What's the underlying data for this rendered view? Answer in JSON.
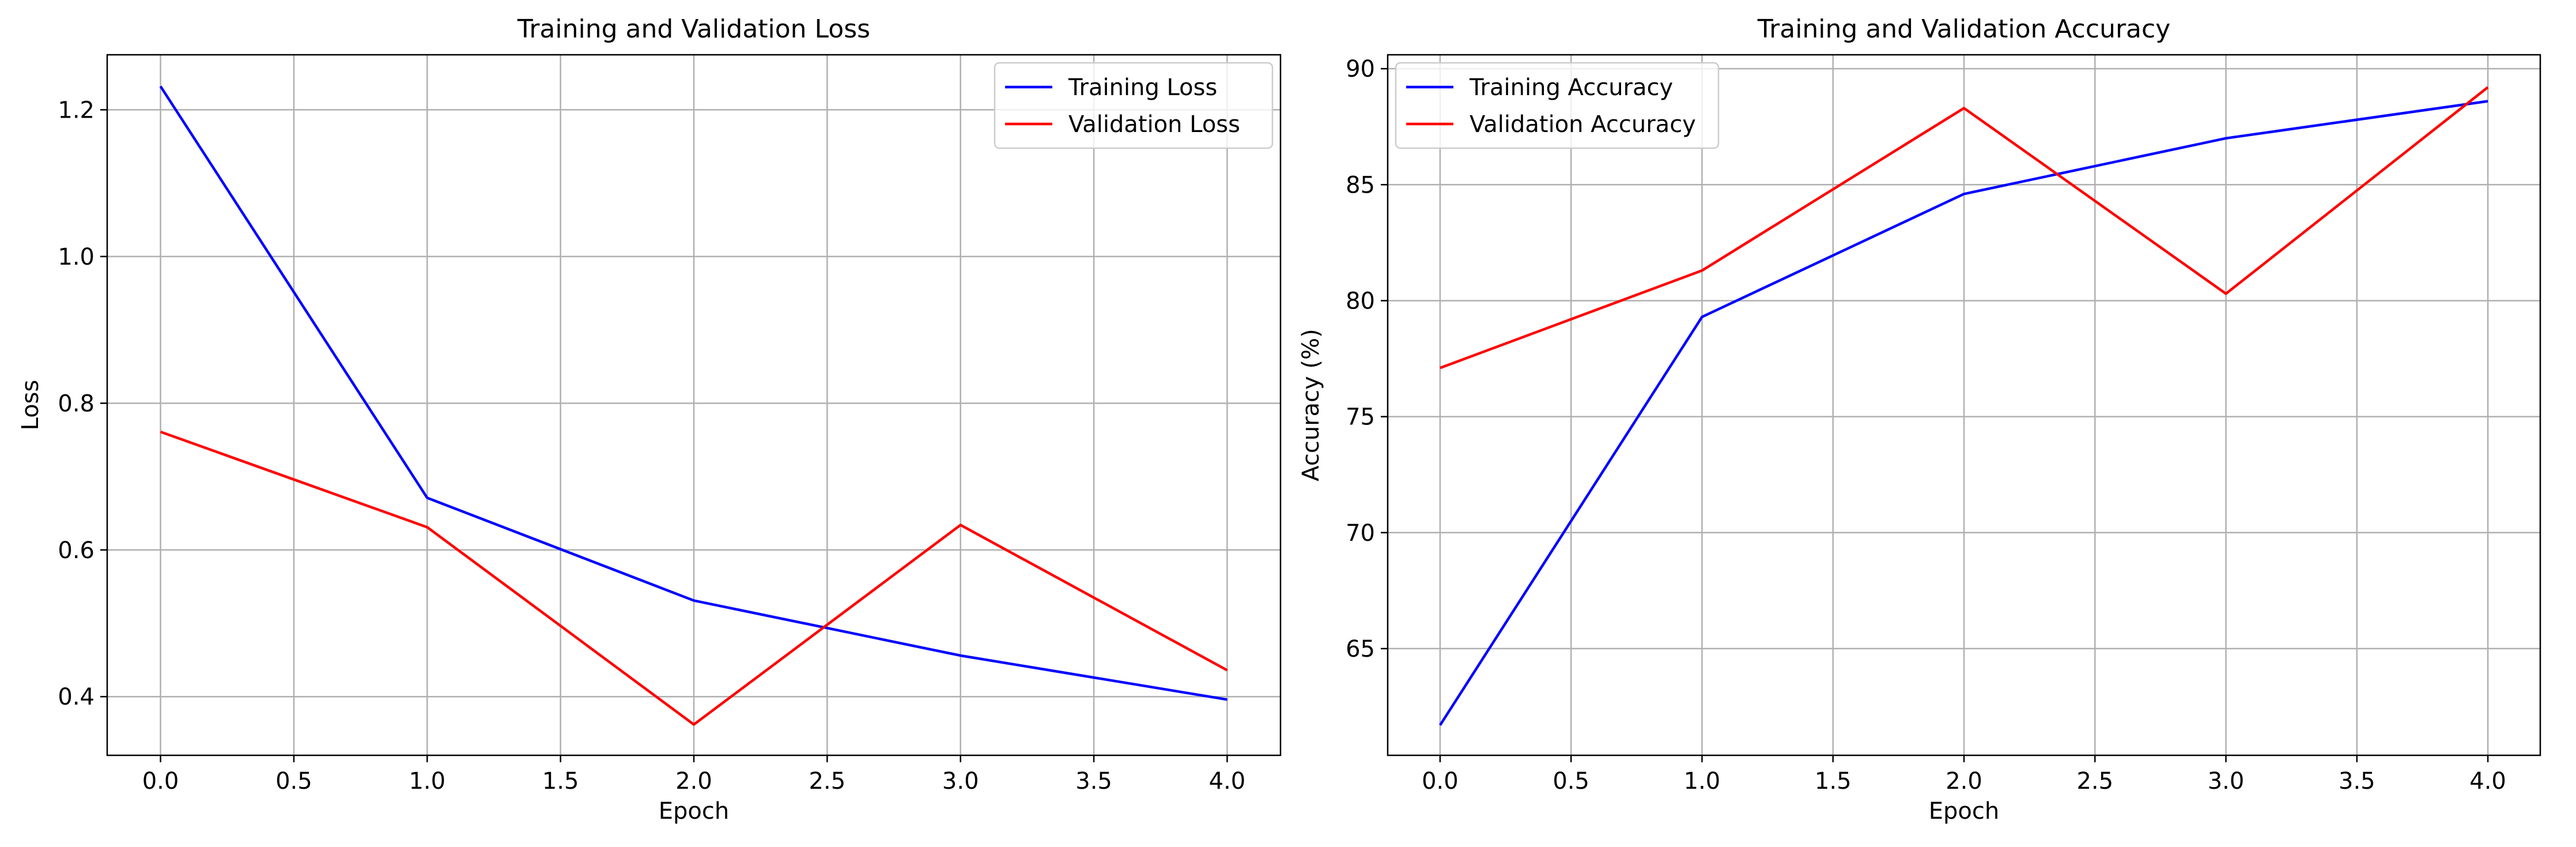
{
  "chart_data": [
    {
      "type": "line",
      "title": "Training and Validation Loss",
      "xlabel": "Epoch",
      "ylabel": "Loss",
      "x": [
        0,
        1,
        2,
        3,
        4
      ],
      "xlim": [
        -0.2,
        4.2
      ],
      "ylim": [
        0.32,
        1.275
      ],
      "xticks": [
        0,
        0.5,
        1,
        1.5,
        2,
        2.5,
        3,
        3.5,
        4
      ],
      "xtick_labels": [
        "0.0",
        "0.5",
        "1.0",
        "1.5",
        "2.0",
        "2.5",
        "3.0",
        "3.5",
        "4.0"
      ],
      "yticks": [
        0.4,
        0.6,
        0.8,
        1.0,
        1.2
      ],
      "ytick_labels": [
        "0.4",
        "0.6",
        "0.8",
        "1.0",
        "1.2"
      ],
      "grid": true,
      "legend_position": "upper right",
      "series": [
        {
          "name": "Training Loss",
          "color": "#0000ff",
          "values": [
            1.232,
            0.671,
            0.531,
            0.456,
            0.396
          ]
        },
        {
          "name": "Validation Loss",
          "color": "#ff0000",
          "values": [
            0.761,
            0.631,
            0.362,
            0.634,
            0.436
          ]
        }
      ]
    },
    {
      "type": "line",
      "title": "Training and Validation Accuracy",
      "xlabel": "Epoch",
      "ylabel": "Accuracy (%)",
      "x": [
        0,
        1,
        2,
        3,
        4
      ],
      "xlim": [
        -0.2,
        4.2
      ],
      "ylim": [
        60.4,
        90.6
      ],
      "xticks": [
        0,
        0.5,
        1,
        1.5,
        2,
        2.5,
        3,
        3.5,
        4
      ],
      "xtick_labels": [
        "0.0",
        "0.5",
        "1.0",
        "1.5",
        "2.0",
        "2.5",
        "3.0",
        "3.5",
        "4.0"
      ],
      "yticks": [
        65,
        70,
        75,
        80,
        85,
        90
      ],
      "ytick_labels": [
        "65",
        "70",
        "75",
        "80",
        "85",
        "90"
      ],
      "grid": true,
      "legend_position": "upper left",
      "series": [
        {
          "name": "Training Accuracy",
          "color": "#0000ff",
          "values": [
            61.7,
            79.3,
            84.6,
            87.0,
            88.6
          ]
        },
        {
          "name": "Validation Accuracy",
          "color": "#ff0000",
          "values": [
            77.1,
            81.3,
            88.3,
            80.3,
            89.2
          ]
        }
      ]
    }
  ]
}
